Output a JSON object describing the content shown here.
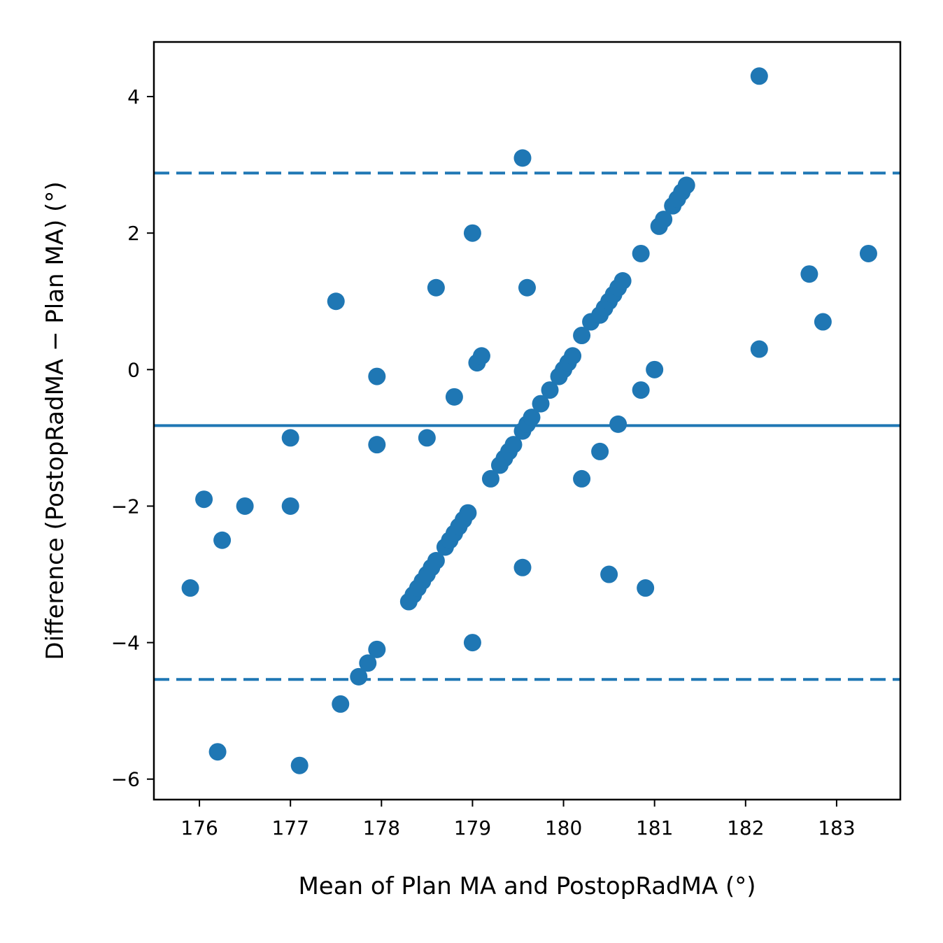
{
  "chart_data": {
    "type": "scatter",
    "title": "",
    "xlabel": "Mean of Plan MA and PostopRadMA (°)",
    "ylabel": "Difference (PostopRadMA − Plan MA) (°)",
    "xlim": [
      175.5,
      183.7
    ],
    "ylim": [
      -6.3,
      4.8
    ],
    "xticks": [
      176,
      177,
      178,
      179,
      180,
      181,
      182,
      183
    ],
    "xtick_labels": [
      "176",
      "177",
      "178",
      "179",
      "180",
      "181",
      "182",
      "183"
    ],
    "yticks": [
      -6,
      -4,
      -2,
      0,
      2,
      4
    ],
    "ytick_labels": [
      "−6",
      "−4",
      "−2",
      "0",
      "2",
      "4"
    ],
    "grid": false,
    "color": "#1f77b4",
    "reference_lines": {
      "mean_difference": -0.82,
      "upper_limit": 2.88,
      "lower_limit": -4.54
    },
    "points": [
      [
        175.9,
        -3.2
      ],
      [
        176.05,
        -1.9
      ],
      [
        176.2,
        -5.6
      ],
      [
        176.25,
        -2.5
      ],
      [
        176.5,
        -2.0
      ],
      [
        177.0,
        -1.0
      ],
      [
        177.0,
        -2.0
      ],
      [
        177.1,
        -5.8
      ],
      [
        177.5,
        1.0
      ],
      [
        177.55,
        -4.9
      ],
      [
        177.75,
        -4.5
      ],
      [
        177.85,
        -4.3
      ],
      [
        177.95,
        -4.1
      ],
      [
        177.95,
        -0.1
      ],
      [
        177.95,
        -1.1
      ],
      [
        178.3,
        -3.4
      ],
      [
        178.35,
        -3.3
      ],
      [
        178.4,
        -3.2
      ],
      [
        178.45,
        -3.1
      ],
      [
        178.5,
        -3.0
      ],
      [
        178.55,
        -2.9
      ],
      [
        178.6,
        -2.8
      ],
      [
        178.5,
        -1.0
      ],
      [
        178.6,
        1.2
      ],
      [
        178.7,
        -2.6
      ],
      [
        178.75,
        -2.5
      ],
      [
        178.8,
        -2.4
      ],
      [
        178.85,
        -2.3
      ],
      [
        178.9,
        -2.2
      ],
      [
        178.95,
        -2.1
      ],
      [
        178.8,
        -0.4
      ],
      [
        179.0,
        2.0
      ],
      [
        179.0,
        -4.0
      ],
      [
        179.05,
        0.1
      ],
      [
        179.1,
        0.2
      ],
      [
        179.2,
        -1.6
      ],
      [
        179.3,
        -1.4
      ],
      [
        179.35,
        -1.3
      ],
      [
        179.4,
        -1.2
      ],
      [
        179.45,
        -1.1
      ],
      [
        179.55,
        3.1
      ],
      [
        179.55,
        -2.9
      ],
      [
        179.55,
        -0.9
      ],
      [
        179.6,
        -0.8
      ],
      [
        179.6,
        1.2
      ],
      [
        179.65,
        -0.7
      ],
      [
        179.75,
        -0.5
      ],
      [
        179.85,
        -0.3
      ],
      [
        179.95,
        -0.1
      ],
      [
        180.0,
        0.0
      ],
      [
        180.05,
        0.1
      ],
      [
        180.1,
        0.2
      ],
      [
        180.2,
        0.5
      ],
      [
        180.2,
        -1.6
      ],
      [
        180.3,
        0.7
      ],
      [
        180.4,
        -1.2
      ],
      [
        180.4,
        0.8
      ],
      [
        180.45,
        0.9
      ],
      [
        180.5,
        1.0
      ],
      [
        180.5,
        -3.0
      ],
      [
        180.55,
        1.1
      ],
      [
        180.6,
        1.2
      ],
      [
        180.6,
        -0.8
      ],
      [
        180.65,
        1.3
      ],
      [
        180.85,
        1.7
      ],
      [
        180.85,
        -0.3
      ],
      [
        180.9,
        -3.2
      ],
      [
        181.0,
        0.0
      ],
      [
        181.05,
        2.1
      ],
      [
        181.1,
        2.2
      ],
      [
        181.2,
        2.4
      ],
      [
        181.25,
        2.5
      ],
      [
        181.3,
        2.6
      ],
      [
        181.35,
        2.7
      ],
      [
        182.15,
        4.3
      ],
      [
        182.15,
        0.3
      ],
      [
        182.7,
        1.4
      ],
      [
        182.85,
        0.7
      ],
      [
        183.35,
        1.7
      ]
    ]
  }
}
